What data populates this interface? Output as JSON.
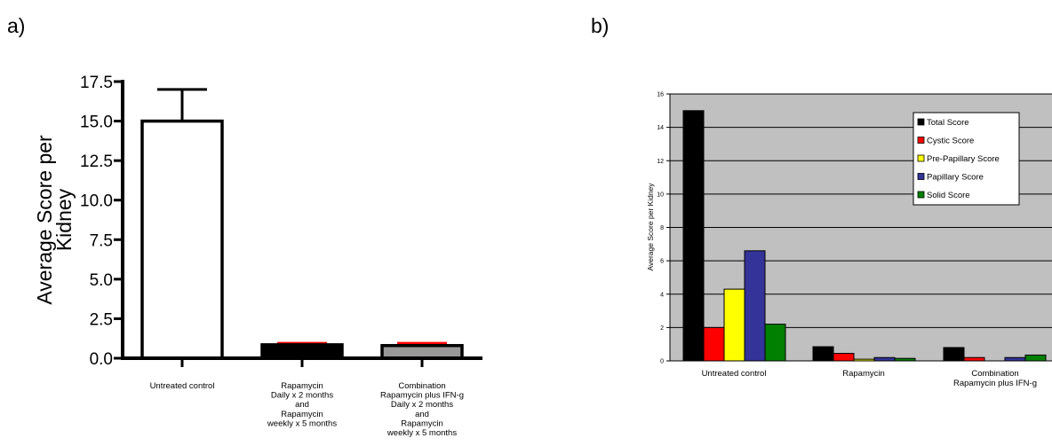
{
  "panel_a_label": "a)",
  "panel_b_label": "b)",
  "chart_data": [
    {
      "type": "bar",
      "panel": "a)",
      "categories": [
        [
          "Untreated control"
        ],
        [
          "Rapamycin",
          "Daily x 2 months",
          "and",
          "Rapamycin",
          "weekly x 5 months"
        ],
        [
          "Combination",
          "Rapamycin plus IFN-g",
          "Daily x 2 months",
          "and",
          "Rapamycin",
          "weekly x 5 months"
        ]
      ],
      "values": [
        15.0,
        0.85,
        0.8
      ],
      "error_upper": [
        17.0,
        0.95,
        0.95
      ],
      "bar_colors": [
        "#ffffff",
        "#000000",
        "#999999"
      ],
      "error_colors": [
        "#000000",
        "#ff0000",
        "#ff0000"
      ],
      "ylabel": [
        "Average Score per",
        "Kidney"
      ],
      "ylim": [
        0,
        17.5
      ],
      "yticks": [
        "0.0",
        "2.5",
        "5.0",
        "7.5",
        "10.0",
        "12.5",
        "15.0",
        "17.5"
      ],
      "grid": false
    },
    {
      "type": "bar",
      "panel": "b)",
      "categories": [
        [
          "Untreated control"
        ],
        [
          "Rapamycin"
        ],
        [
          "Combination",
          "Rapamycin plus IFN-g"
        ]
      ],
      "series": [
        {
          "name": "Total Score",
          "color": "#000000",
          "values": [
            15.0,
            0.85,
            0.8
          ]
        },
        {
          "name": "Cystic Score",
          "color": "#ff0000",
          "values": [
            2.0,
            0.45,
            0.2
          ]
        },
        {
          "name": "Pre-Papillary Score",
          "color": "#ffff00",
          "values": [
            4.3,
            0.1,
            0.0
          ]
        },
        {
          "name": "Papillary Score",
          "color": "#333399",
          "values": [
            6.6,
            0.2,
            0.2
          ]
        },
        {
          "name": "Solid Score",
          "color": "#008000",
          "values": [
            2.2,
            0.15,
            0.35
          ]
        }
      ],
      "ylabel": "Average Score per Kidney",
      "ylim": [
        0,
        16
      ],
      "yticks": [
        "0",
        "2",
        "4",
        "6",
        "8",
        "10",
        "12",
        "14",
        "16"
      ],
      "plot_background": "#c0c0c0",
      "grid": true,
      "legend_position": "top-right"
    }
  ]
}
